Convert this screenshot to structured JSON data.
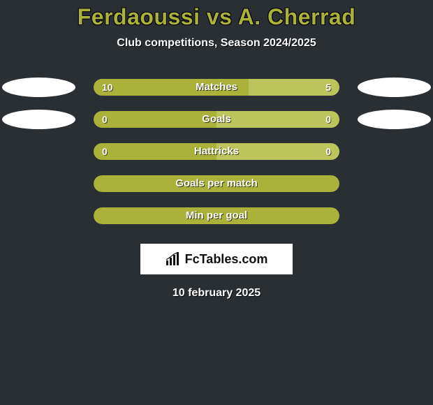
{
  "title": "Ferdaoussi vs A. Cherrad",
  "subtitle": "Club competitions, Season 2024/2025",
  "colors": {
    "background": "#2a2f34",
    "accent": "#aab23a",
    "accent_light": "#bcc45c",
    "oval": "#ffffff",
    "text": "#ffffff"
  },
  "rows": [
    {
      "label": "Matches",
      "left_value": "10",
      "right_value": "5",
      "left_pct": 63,
      "right_pct": 37,
      "show_ovals": true
    },
    {
      "label": "Goals",
      "left_value": "0",
      "right_value": "0",
      "left_pct": 50,
      "right_pct": 50,
      "show_ovals": true
    },
    {
      "label": "Hattricks",
      "left_value": "0",
      "right_value": "0",
      "left_pct": 50,
      "right_pct": 50,
      "show_ovals": false
    },
    {
      "label": "Goals per match",
      "left_value": "",
      "right_value": "",
      "left_pct": 100,
      "right_pct": 0,
      "show_ovals": false,
      "full": true
    },
    {
      "label": "Min per goal",
      "left_value": "",
      "right_value": "",
      "left_pct": 100,
      "right_pct": 0,
      "show_ovals": false,
      "full": true
    }
  ],
  "logo_text": "FcTables.com",
  "date": "10 february 2025",
  "typography": {
    "title_fontsize": 32,
    "subtitle_fontsize": 16,
    "bar_label_fontsize": 15,
    "bar_value_fontsize": 14,
    "date_fontsize": 16
  }
}
